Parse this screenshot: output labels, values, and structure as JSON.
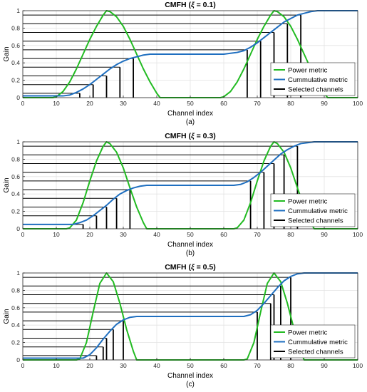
{
  "colors": {
    "power": "#22bb22",
    "cumulative": "#1f6fc0",
    "selected": "#000000",
    "grid": "#e3e3e3",
    "axes": "#262626"
  },
  "chart_data": [
    {
      "type": "line",
      "title_prefix": "CMFH (",
      "title_symbol": "ξ",
      "title_suffix": " = 0.1)",
      "xlabel": "Channel index",
      "ylabel": "Gain",
      "sublabel": "(a)",
      "xlim": [
        0,
        100
      ],
      "ylim": [
        0,
        1
      ],
      "xticks": [
        "0",
        "10",
        "20",
        "30",
        "40",
        "50",
        "60",
        "70",
        "80",
        "90",
        "100"
      ],
      "yticks": [
        "0",
        "0.2",
        "0.4",
        "0.6",
        "0.8",
        "1"
      ],
      "grid": true,
      "legend_position": "bottom-right",
      "legend": [
        "Power metric",
        "Cummulative metric",
        "Selected channels"
      ],
      "series": [
        {
          "name": "Power metric",
          "color_key": "power",
          "x": [
            0,
            9,
            10,
            12,
            14,
            16,
            18,
            20,
            22,
            24,
            25,
            26,
            28,
            30,
            32,
            34,
            36,
            38,
            40,
            41,
            59,
            60,
            62,
            64,
            66,
            68,
            70,
            72,
            74,
            75,
            76,
            78,
            80,
            82,
            84,
            86,
            88,
            90,
            91,
            100
          ],
          "y": [
            0,
            0,
            0.01,
            0.07,
            0.18,
            0.33,
            0.5,
            0.67,
            0.82,
            0.95,
            1.0,
            0.99,
            0.93,
            0.82,
            0.67,
            0.5,
            0.33,
            0.18,
            0.05,
            0,
            0,
            0.01,
            0.07,
            0.18,
            0.33,
            0.5,
            0.67,
            0.82,
            0.95,
            1.0,
            0.99,
            0.93,
            0.82,
            0.67,
            0.5,
            0.33,
            0.18,
            0.05,
            0,
            0
          ]
        },
        {
          "name": "Cummulative metric",
          "color_key": "cumulative",
          "x": [
            0,
            12,
            14,
            16,
            18,
            20,
            22,
            24,
            26,
            28,
            30,
            32,
            34,
            36,
            38,
            40,
            42,
            60,
            62,
            64,
            66,
            68,
            70,
            72,
            74,
            76,
            78,
            80,
            82,
            84,
            86,
            88,
            90,
            100
          ],
          "y": [
            0.02,
            0.02,
            0.03,
            0.06,
            0.1,
            0.15,
            0.21,
            0.27,
            0.33,
            0.38,
            0.42,
            0.45,
            0.47,
            0.49,
            0.5,
            0.5,
            0.5,
            0.5,
            0.51,
            0.52,
            0.54,
            0.58,
            0.63,
            0.69,
            0.75,
            0.81,
            0.87,
            0.91,
            0.95,
            0.97,
            0.99,
            1.0,
            1.0,
            1.0
          ]
        }
      ],
      "selected_channels": {
        "name": "Selected channels",
        "x": [
          17,
          21,
          25,
          29,
          33,
          67,
          71,
          75,
          79,
          83
        ],
        "y": [
          0.05,
          0.15,
          0.25,
          0.35,
          0.45,
          0.55,
          0.65,
          0.75,
          0.85,
          0.95
        ]
      },
      "levels": [
        0.05,
        0.15,
        0.25,
        0.35,
        0.45,
        0.55,
        0.65,
        0.75,
        0.85,
        0.95
      ]
    },
    {
      "type": "line",
      "title_prefix": "CMFH (",
      "title_symbol": "ξ",
      "title_suffix": " = 0.3)",
      "xlabel": "Channel index",
      "ylabel": "Gain",
      "sublabel": "(b)",
      "xlim": [
        0,
        100
      ],
      "ylim": [
        0,
        1
      ],
      "xticks": [
        "0",
        "10",
        "20",
        "30",
        "40",
        "50",
        "60",
        "70",
        "80",
        "90",
        "100"
      ],
      "yticks": [
        "0",
        "0.2",
        "0.4",
        "0.6",
        "0.8",
        "1"
      ],
      "grid": true,
      "legend_position": "bottom-right",
      "legend": [
        "Power metric",
        "Cummulative metric",
        "Selected channels"
      ],
      "series": [
        {
          "name": "Power metric",
          "color_key": "power",
          "x": [
            0,
            13,
            14,
            16,
            18,
            20,
            22,
            24,
            25,
            26,
            28,
            30,
            32,
            34,
            36,
            37,
            63,
            64,
            66,
            68,
            70,
            72,
            74,
            75,
            76,
            78,
            80,
            82,
            84,
            86,
            87,
            100
          ],
          "y": [
            0,
            0,
            0.01,
            0.1,
            0.3,
            0.55,
            0.78,
            0.95,
            1.0,
            0.98,
            0.88,
            0.7,
            0.47,
            0.25,
            0.07,
            0,
            0,
            0.01,
            0.1,
            0.3,
            0.55,
            0.78,
            0.95,
            1.0,
            0.98,
            0.88,
            0.7,
            0.47,
            0.25,
            0.07,
            0,
            0
          ]
        },
        {
          "name": "Cummulative metric",
          "color_key": "cumulative",
          "x": [
            0,
            15,
            17,
            19,
            21,
            23,
            25,
            27,
            29,
            31,
            33,
            35,
            37,
            63,
            65,
            67,
            69,
            71,
            73,
            75,
            77,
            79,
            81,
            83,
            85,
            87,
            100
          ],
          "y": [
            0.05,
            0.05,
            0.07,
            0.1,
            0.15,
            0.21,
            0.27,
            0.34,
            0.4,
            0.44,
            0.47,
            0.49,
            0.5,
            0.5,
            0.51,
            0.54,
            0.59,
            0.65,
            0.72,
            0.79,
            0.86,
            0.91,
            0.95,
            0.98,
            0.99,
            1.0,
            1.0
          ]
        }
      ],
      "selected_channels": {
        "name": "Selected channels",
        "x": [
          18,
          22,
          25,
          28,
          32,
          68,
          72,
          75,
          78,
          82
        ],
        "y": [
          0.05,
          0.15,
          0.25,
          0.35,
          0.45,
          0.55,
          0.65,
          0.75,
          0.85,
          0.95
        ]
      },
      "levels": [
        0.05,
        0.15,
        0.25,
        0.35,
        0.45,
        0.55,
        0.65,
        0.75,
        0.85,
        0.95
      ]
    },
    {
      "type": "line",
      "title_prefix": "CMFH (",
      "title_symbol": "ξ",
      "title_suffix": " = 0.5)",
      "xlabel": "Channel index",
      "ylabel": "Gain",
      "sublabel": "(c)",
      "xlim": [
        0,
        100
      ],
      "ylim": [
        0,
        1
      ],
      "xticks": [
        "0",
        "10",
        "20",
        "30",
        "40",
        "50",
        "60",
        "70",
        "80",
        "90",
        "100"
      ],
      "yticks": [
        "0",
        "0.2",
        "0.4",
        "0.6",
        "0.8",
        "1"
      ],
      "grid": true,
      "legend_position": "bottom-right",
      "legend": [
        "Power metric",
        "Cummulative metric",
        "Selected channels"
      ],
      "series": [
        {
          "name": "Power metric",
          "color_key": "power",
          "x": [
            0,
            16,
            17,
            19,
            21,
            23,
            25,
            27,
            29,
            31,
            33,
            34,
            66,
            67,
            69,
            71,
            73,
            75,
            77,
            79,
            81,
            83,
            84,
            100
          ],
          "y": [
            0,
            0,
            0.01,
            0.2,
            0.55,
            0.88,
            1.0,
            0.9,
            0.65,
            0.35,
            0.1,
            0,
            0,
            0.01,
            0.2,
            0.55,
            0.88,
            1.0,
            0.9,
            0.65,
            0.35,
            0.1,
            0,
            0
          ]
        },
        {
          "name": "Cummulative metric",
          "color_key": "cumulative",
          "x": [
            0,
            18,
            20,
            22,
            24,
            26,
            28,
            30,
            32,
            34,
            66,
            68,
            70,
            72,
            74,
            76,
            78,
            80,
            82,
            84,
            100
          ],
          "y": [
            0.02,
            0.02,
            0.06,
            0.14,
            0.24,
            0.33,
            0.41,
            0.46,
            0.49,
            0.5,
            0.5,
            0.52,
            0.57,
            0.65,
            0.74,
            0.83,
            0.91,
            0.96,
            0.99,
            1.0,
            1.0
          ]
        }
      ],
      "selected_channels": {
        "name": "Selected channels",
        "x": [
          22,
          24,
          25,
          27,
          30,
          70,
          74,
          75,
          77,
          80
        ],
        "y": [
          0.05,
          0.15,
          0.25,
          0.35,
          0.45,
          0.55,
          0.65,
          0.75,
          0.85,
          0.95
        ]
      },
      "levels": [
        0.05,
        0.15,
        0.25,
        0.35,
        0.45,
        0.55,
        0.65,
        0.75,
        0.85,
        0.95
      ]
    }
  ]
}
